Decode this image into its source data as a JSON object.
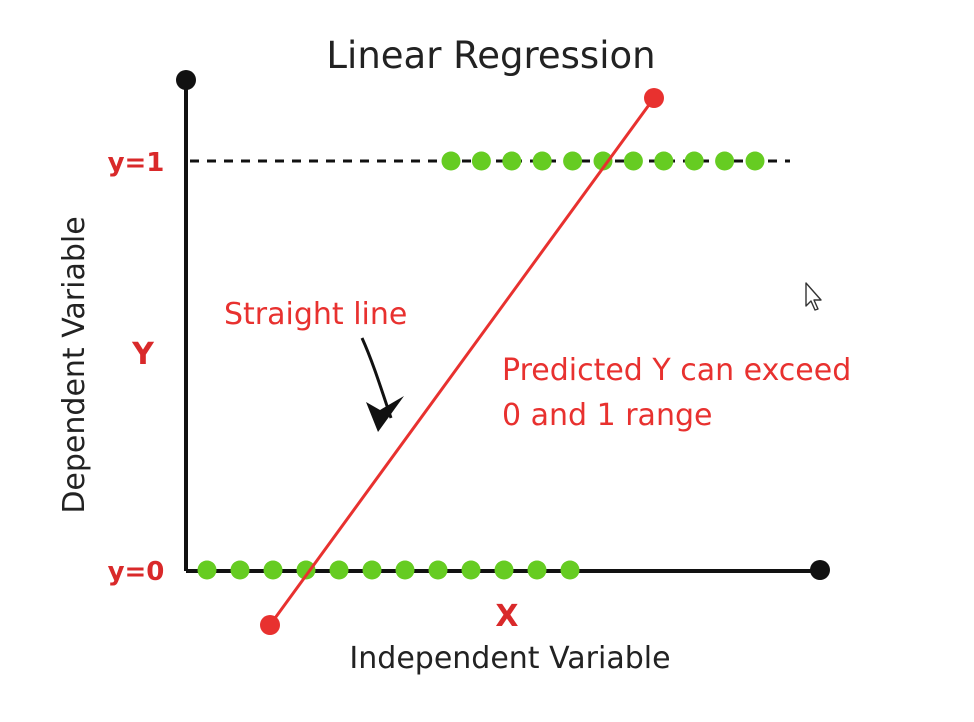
{
  "title": "Linear Regression",
  "y_axis": {
    "name": "Dependent Variable",
    "symbol": "Y",
    "tick_top": "y=1",
    "tick_bottom": "y=0"
  },
  "x_axis": {
    "name": "Independent Variable",
    "symbol": "X"
  },
  "annotations": {
    "straight_line": "Straight line",
    "predicted_line1": "Predicted Y can exceed",
    "predicted_line2": "0 and 1 range"
  },
  "points": {
    "y1_count": 11,
    "y0_count": 12
  },
  "colors": {
    "axis": "#111111",
    "red": "#e8312f",
    "green": "#66cc22",
    "label_red": "#d9292a",
    "text": "#222222"
  },
  "icons": {
    "cursor": "mouse-pointer-icon"
  }
}
